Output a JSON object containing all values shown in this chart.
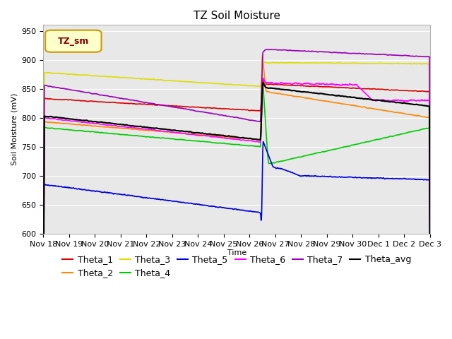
{
  "title": "TZ Soil Moisture",
  "xlabel": "Time",
  "ylabel": "Soil Moisture (mV)",
  "ylim": [
    600,
    960
  ],
  "yticks": [
    600,
    650,
    700,
    750,
    800,
    850,
    900,
    950
  ],
  "x_labels": [
    "Nov 18",
    "Nov 19",
    "Nov 20",
    "Nov 21",
    "Nov 22",
    "Nov 23",
    "Nov 24",
    "Nov 25",
    "Nov 26",
    "Nov 27",
    "Nov 28",
    "Nov 29",
    "Nov 30",
    "Dec 1",
    "Dec 2",
    "Dec 3"
  ],
  "num_points": 1600,
  "spike_index": 900,
  "colors": {
    "Theta_1": "#dd0000",
    "Theta_2": "#ff8800",
    "Theta_3": "#dddd00",
    "Theta_4": "#00cc00",
    "Theta_5": "#0000dd",
    "Theta_6": "#ff00ff",
    "Theta_7": "#9900bb",
    "Theta_avg": "#000000"
  },
  "background_color": "#e8e8e8",
  "plot_bg_color": "#e8e8e8",
  "legend_box_facecolor": "#ffffcc",
  "legend_box_edgecolor": "#cc9900",
  "legend_box_text": "TZ_sm",
  "legend_box_text_color": "#880000",
  "title_fontsize": 11,
  "axis_fontsize": 8,
  "tick_fontsize": 8,
  "legend_fontsize": 9
}
